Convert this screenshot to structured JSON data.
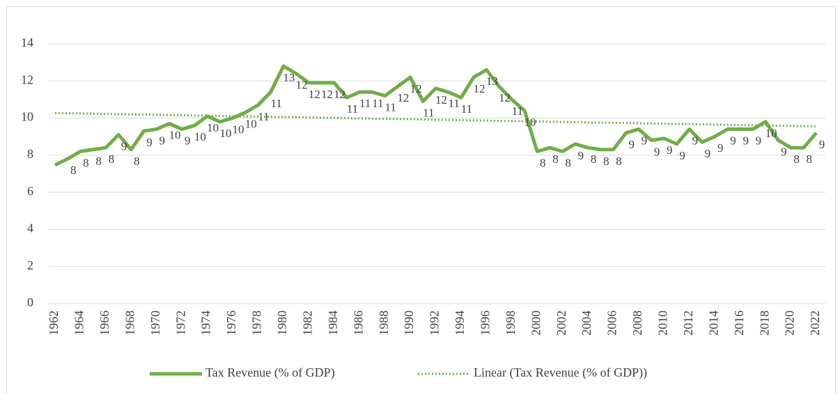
{
  "chart_data": {
    "type": "line",
    "x": [
      1962,
      1963,
      1964,
      1965,
      1966,
      1967,
      1968,
      1969,
      1970,
      1971,
      1972,
      1973,
      1974,
      1975,
      1976,
      1977,
      1978,
      1979,
      1980,
      1981,
      1982,
      1983,
      1984,
      1985,
      1986,
      1987,
      1988,
      1989,
      1990,
      1991,
      1992,
      1993,
      1994,
      1995,
      1996,
      1997,
      1998,
      1999,
      2000,
      2001,
      2002,
      2003,
      2004,
      2005,
      2006,
      2007,
      2008,
      2009,
      2010,
      2011,
      2012,
      2013,
      2014,
      2015,
      2016,
      2017,
      2018,
      2019,
      2020,
      2021,
      2022
    ],
    "series": [
      {
        "name": "Tax Revenue (% of GDP)",
        "color": "#70ad47",
        "values": [
          7.47,
          7.8,
          8.2,
          8.3,
          8.4,
          9.1,
          8.3,
          9.3,
          9.4,
          9.7,
          9.4,
          9.6,
          10.1,
          9.8,
          10.0,
          10.3,
          10.7,
          11.4,
          12.8,
          12.4,
          11.9,
          11.9,
          11.9,
          11.1,
          11.4,
          11.4,
          11.2,
          11.7,
          12.2,
          10.9,
          11.6,
          11.4,
          11.1,
          12.2,
          12.6,
          11.7,
          11.0,
          10.4,
          8.2,
          8.4,
          8.2,
          8.6,
          8.4,
          8.3,
          8.3,
          9.2,
          9.4,
          8.8,
          8.9,
          8.6,
          9.4,
          8.7,
          9.0,
          9.4,
          9.4,
          9.4,
          9.8,
          8.8,
          8.4,
          8.4,
          9.2
        ],
        "value_labels": [
          null,
          "8",
          "8",
          "8",
          "8",
          "9",
          "8",
          "9",
          "9",
          "10",
          "9",
          "10",
          "10",
          "10",
          "10",
          "10",
          "11",
          "11",
          "13",
          "12",
          "12",
          "12",
          "12",
          "11",
          "11",
          "11",
          "11",
          "12",
          "12",
          "11",
          "12",
          "11",
          "11",
          "12",
          "13",
          "12",
          "11",
          "10",
          "8",
          "8",
          "8",
          "9",
          "8",
          "8",
          "8",
          "9",
          "9",
          "9",
          "9",
          "9",
          "9",
          "9",
          "9",
          "9",
          "9",
          "9",
          "10",
          "9",
          "8",
          "8",
          "9"
        ]
      },
      {
        "name": "Linear (Tax Revenue (% of GDP))",
        "color": "#70ad47",
        "dash": "dotted",
        "x": [
          1962,
          2022
        ],
        "values": [
          10.27,
          9.55
        ]
      }
    ],
    "xlim": [
      1962,
      2022
    ],
    "xticks": [
      1962,
      1964,
      1966,
      1968,
      1970,
      1972,
      1974,
      1976,
      1978,
      1980,
      1982,
      1984,
      1986,
      1988,
      1990,
      1992,
      1994,
      1996,
      1998,
      2000,
      2002,
      2004,
      2006,
      2008,
      2010,
      2012,
      2014,
      2016,
      2018,
      2020,
      2022
    ],
    "ylim": [
      0,
      14
    ],
    "yticks": [
      0,
      2,
      4,
      6,
      8,
      10,
      12,
      14
    ],
    "grid": true
  }
}
